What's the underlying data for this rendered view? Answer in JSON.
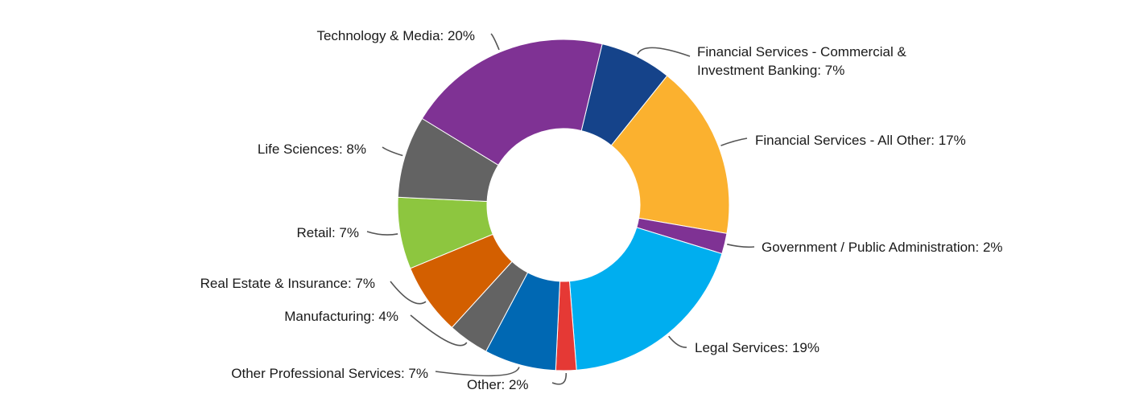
{
  "chart_data": {
    "type": "pie",
    "donut": true,
    "title": "",
    "legend": "none",
    "slices": [
      {
        "label": "Financial Services - Commercial & Investment Banking",
        "label_lines": [
          "Financial Services - Commercial &",
          "Investment Banking: 7%"
        ],
        "value": 7,
        "color": "#15438A"
      },
      {
        "label": "Financial Services - All Other",
        "label_lines": [
          "Financial Services - All Other: 17%"
        ],
        "value": 17,
        "color": "#FBB12F"
      },
      {
        "label": "Government / Public Administration",
        "label_lines": [
          "Government / Public Administration: 2%"
        ],
        "value": 2,
        "color": "#7F3294"
      },
      {
        "label": "Legal Services",
        "label_lines": [
          "Legal Services: 19%"
        ],
        "value": 19,
        "color": "#00AEEF"
      },
      {
        "label": "Other",
        "label_lines": [
          "Other: 2%"
        ],
        "value": 2,
        "color": "#E53935"
      },
      {
        "label": "Other Professional Services",
        "label_lines": [
          "Other Professional Services: 7%"
        ],
        "value": 7,
        "color": "#0068B3"
      },
      {
        "label": "Manufacturing",
        "label_lines": [
          "Manufacturing: 4%"
        ],
        "value": 4,
        "color": "#636363"
      },
      {
        "label": "Real Estate & Insurance",
        "label_lines": [
          "Real Estate & Insurance: 7%"
        ],
        "value": 7,
        "color": "#D35F00"
      },
      {
        "label": "Retail",
        "label_lines": [
          "Retail: 7%"
        ],
        "value": 7,
        "color": "#8DC63F"
      },
      {
        "label": "Life Sciences",
        "label_lines": [
          "Life Sciences: 8%"
        ],
        "value": 8,
        "color": "#636363"
      },
      {
        "label": "Technology & Media",
        "label_lines": [
          "Technology & Media: 20%"
        ],
        "value": 20,
        "color": "#7F3294"
      }
    ]
  }
}
